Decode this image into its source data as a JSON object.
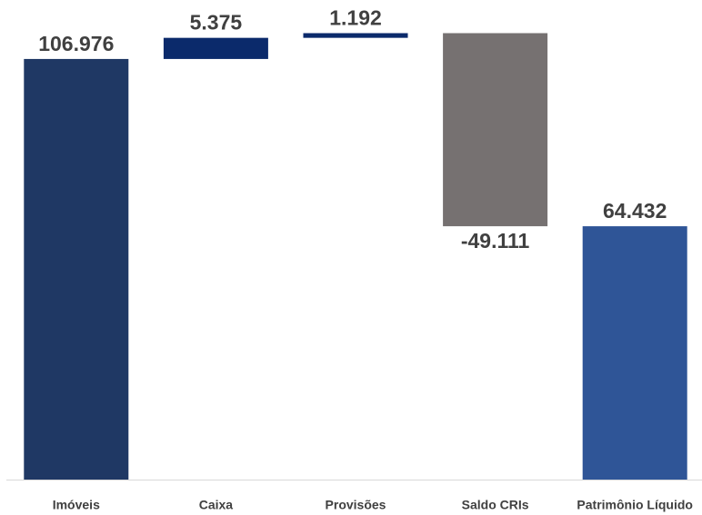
{
  "chart_data": {
    "type": "waterfall",
    "categories": [
      "Imóveis",
      "Caixa",
      "Provisões",
      "Saldo CRIs",
      "Patrimônio Líquido"
    ],
    "values": [
      106976,
      5375,
      1192,
      -49111,
      64432
    ],
    "value_labels": [
      "106.976",
      "5.375",
      "1.192",
      "-49.111",
      "64.432"
    ],
    "measures": [
      "absolute",
      "relative",
      "relative",
      "relative",
      "total"
    ],
    "colors": [
      "#1f3864",
      "#0b2a6b",
      "#0b2a6b",
      "#767171",
      "#2f5597"
    ]
  }
}
